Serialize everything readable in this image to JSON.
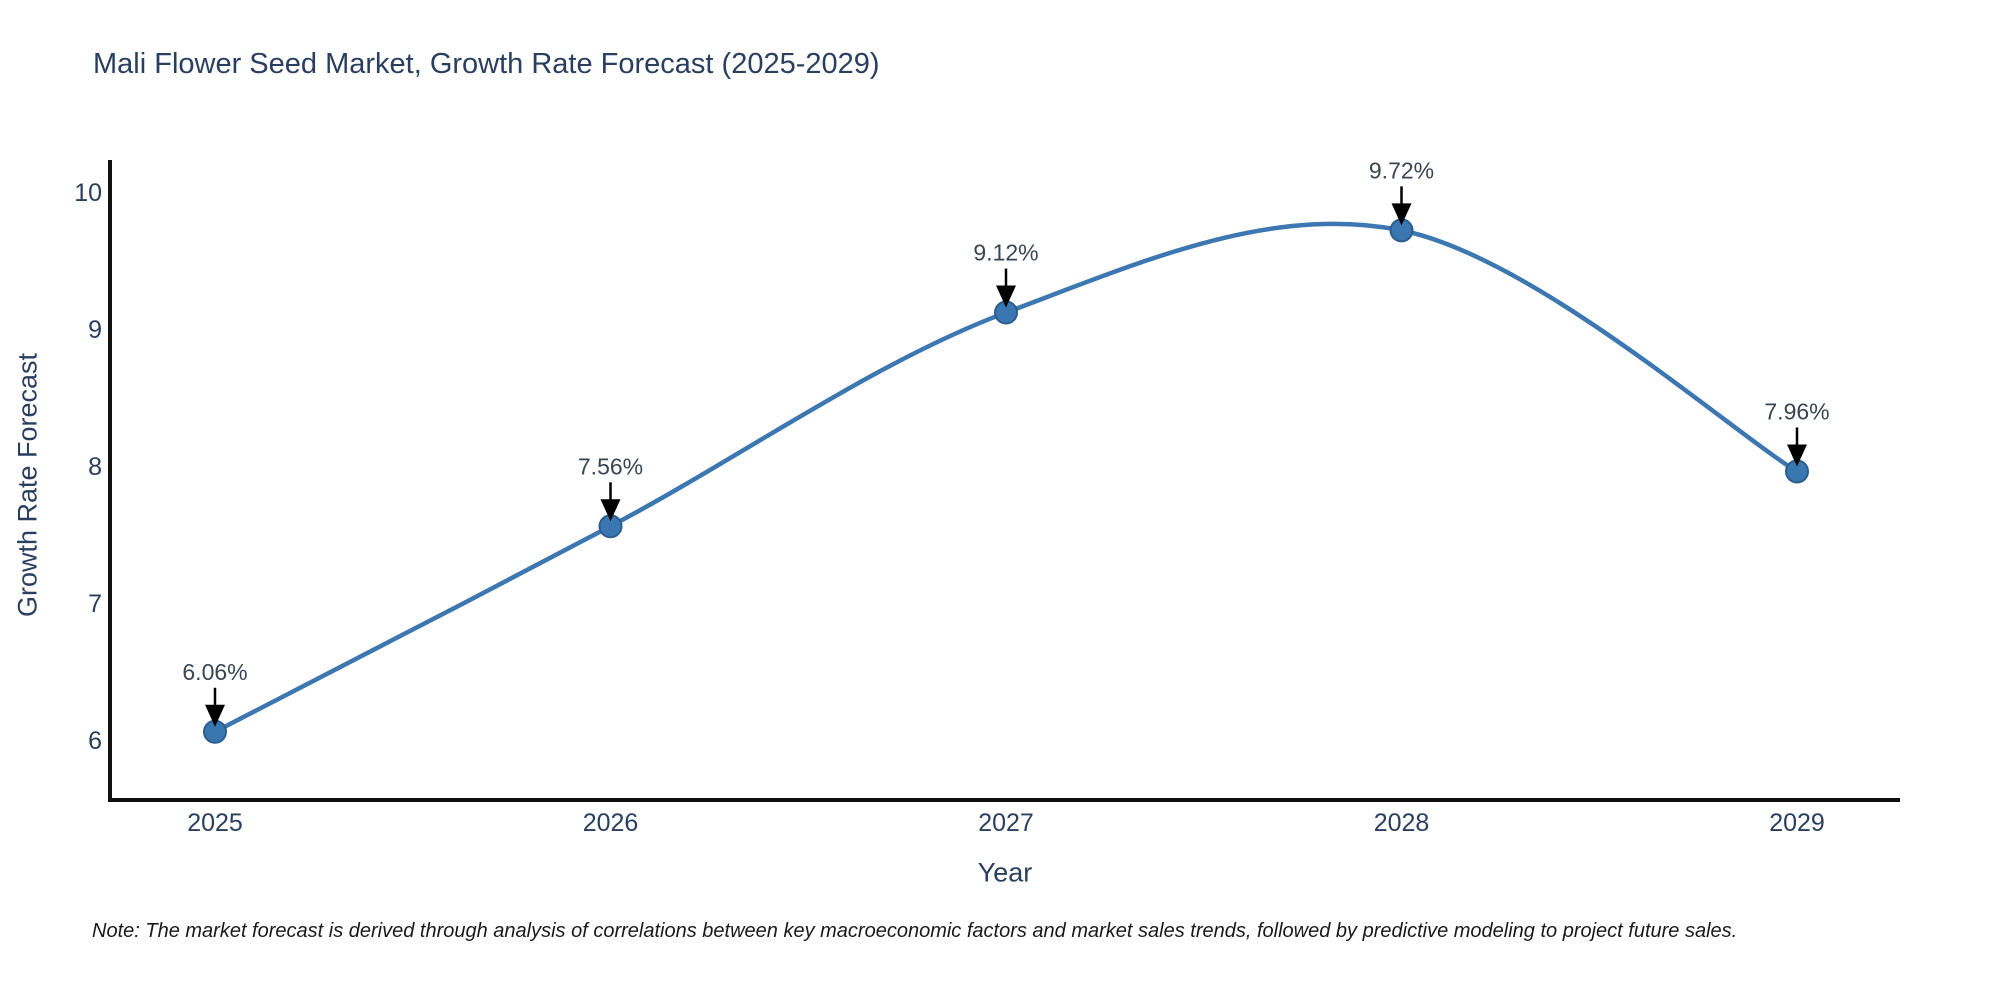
{
  "title": "Mali Flower Seed Market, Growth Rate Forecast (2025-2029)",
  "note": "Note: The market forecast is derived through analysis of correlations between key macroeconomic factors and market sales trends, followed by predictive modeling to project future sales.",
  "chart_data": {
    "type": "line",
    "title": "Mali Flower Seed Market, Growth Rate Forecast (2025-2029)",
    "xlabel": "Year",
    "ylabel": "Growth Rate Forecast",
    "categories": [
      "2025",
      "2026",
      "2027",
      "2028",
      "2029"
    ],
    "values": [
      6.06,
      7.56,
      9.12,
      9.72,
      7.96
    ],
    "point_labels": [
      "6.06%",
      "7.56%",
      "9.12%",
      "9.72%",
      "7.96%"
    ],
    "yticks": [
      6,
      7,
      8,
      9,
      10
    ],
    "ylim": [
      6,
      10
    ],
    "line_shape": "spline",
    "grid": false,
    "legend": "none",
    "colors": {
      "line": "#3c77b2",
      "marker_fill": "#3a76b0",
      "marker_stroke": "#2c5d8f",
      "arrow": "#000000",
      "title_text": "#2a3f5f",
      "axis_text": "#2a3f5f",
      "annotation_text": "#3a4552",
      "axis_line": "#101010",
      "background": "#ffffff"
    }
  }
}
